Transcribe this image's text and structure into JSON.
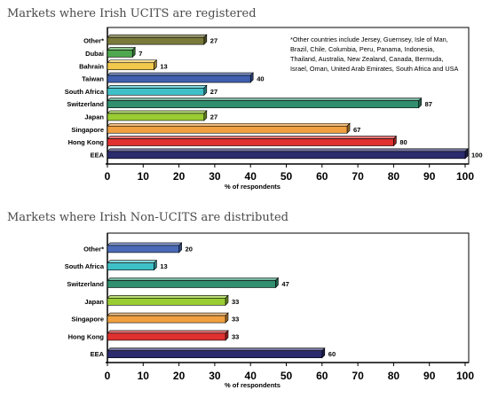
{
  "chart_data": [
    {
      "type": "bar",
      "orientation": "horizontal",
      "style": "3d",
      "title": "Markets where Irish UCITS are registered",
      "xlabel": "% of respondents",
      "xlim": [
        0,
        100
      ],
      "xticks": [
        "0",
        "10",
        "20",
        "30",
        "40",
        "50",
        "60",
        "70",
        "80",
        "90",
        "100"
      ],
      "categories": [
        "Other*",
        "Dubai",
        "Bahrain",
        "Taiwan",
        "South Africa",
        "Switzerland",
        "Japan",
        "Singapore",
        "Hong Kong",
        "EEA"
      ],
      "values": [
        27,
        7,
        13,
        40,
        27,
        87,
        27,
        67,
        80,
        100
      ],
      "colors": [
        "#7a7a3a",
        "#4fa84f",
        "#f2c94c",
        "#3f5fae",
        "#3ec0c8",
        "#2f8f6f",
        "#9acd32",
        "#f0a040",
        "#e03030",
        "#2b2b6e"
      ],
      "annotation": "*Other countries include Jersey, Guernsey, Isle of Man, Brazil, Chile, Columbia, Peru, Panama, Indonesia, Thailand, Australia, New Zealand, Canada, Bermuda, Israel, Oman, United Arab Emirates, South Africa and USA",
      "grid": false
    },
    {
      "type": "bar",
      "orientation": "horizontal",
      "style": "3d",
      "title": "Markets where Irish Non-UCITS are distributed",
      "xlabel": "% of respondents",
      "xlim": [
        0,
        100
      ],
      "xticks": [
        "0",
        "10",
        "20",
        "30",
        "40",
        "50",
        "60",
        "70",
        "80",
        "90",
        "100"
      ],
      "categories": [
        "Other*",
        "South Africa",
        "Switzerland",
        "Japan",
        "Singapore",
        "Hong Kong",
        "EEA"
      ],
      "values": [
        20,
        13,
        47,
        33,
        33,
        33,
        60
      ],
      "colors": [
        "#4a6ab8",
        "#3ec0c8",
        "#2f8f6f",
        "#9acd32",
        "#f0a040",
        "#e03030",
        "#2b2b6e"
      ],
      "grid": false
    }
  ]
}
